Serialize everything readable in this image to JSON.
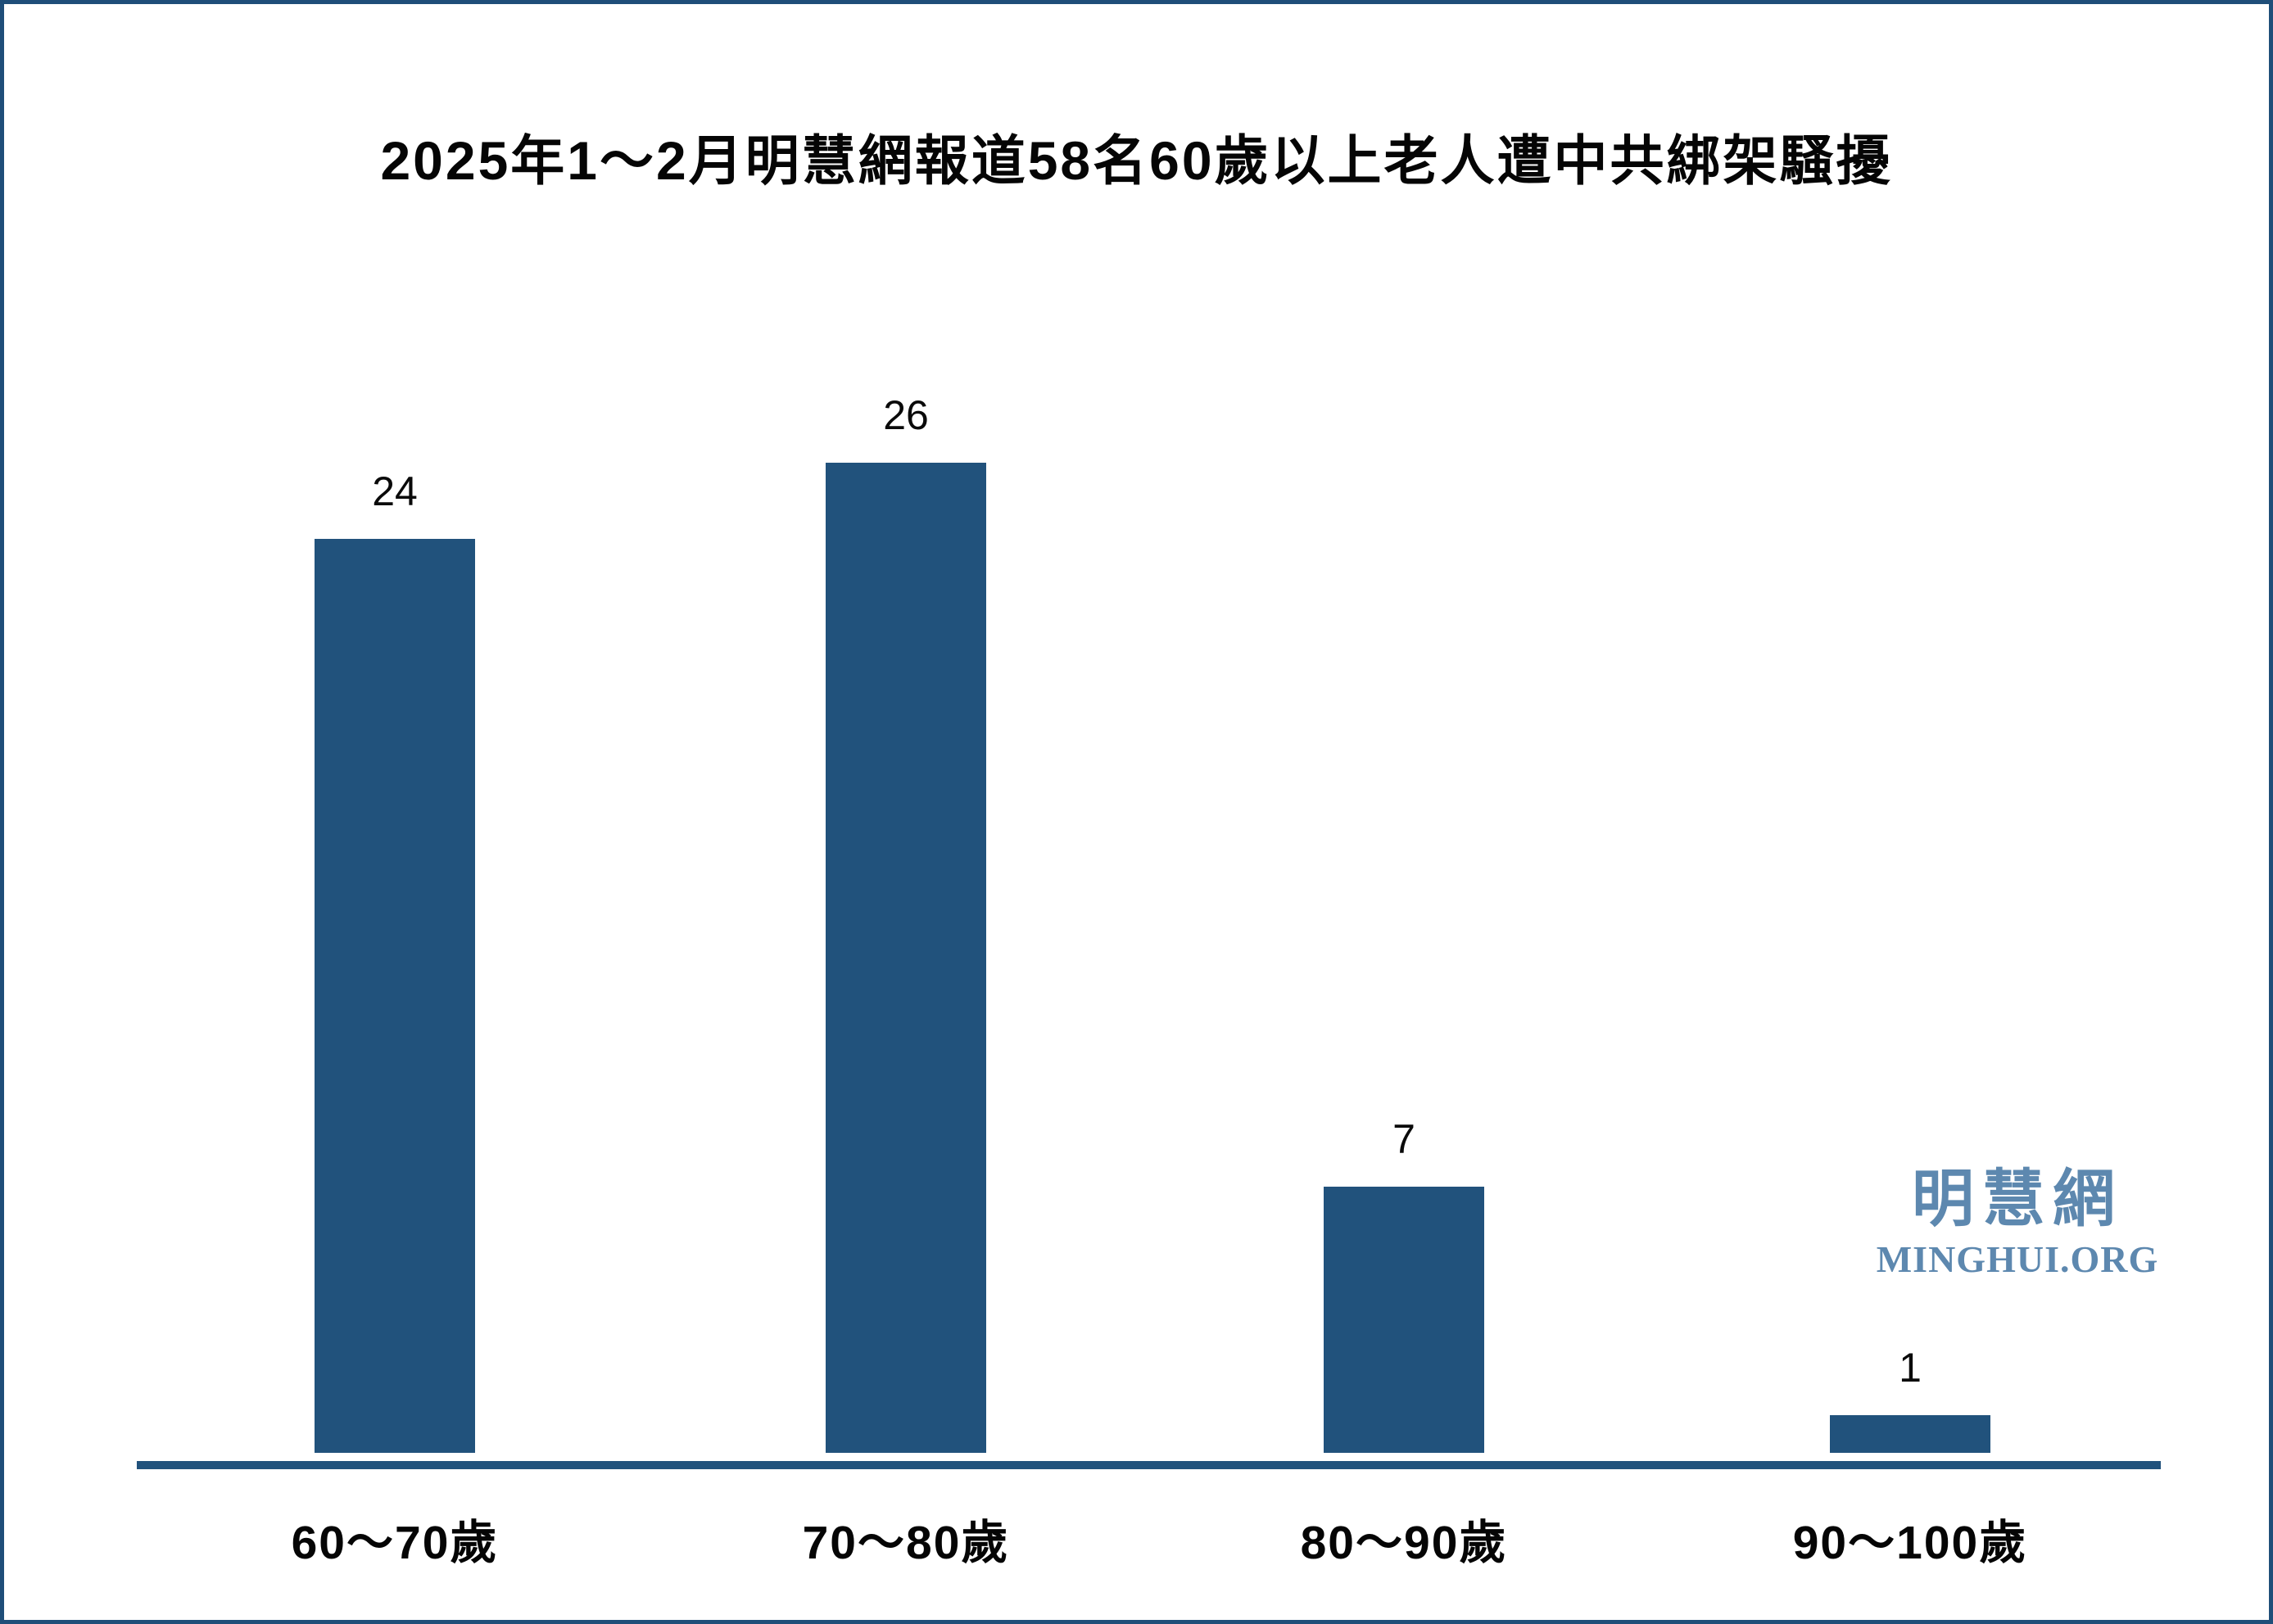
{
  "page": {
    "background": "#ffffff",
    "border_color": "#1f4e79"
  },
  "chart_data": {
    "type": "bar",
    "title": "2025年1～2月明慧網報道58名60歲以上老人遭中共綁架騷擾",
    "categories": [
      "60～70歲",
      "70～80歲",
      "80～90歲",
      "90～100歲"
    ],
    "values": [
      24,
      26,
      7,
      1
    ],
    "value_labels": [
      "24",
      "26",
      "7",
      "1"
    ],
    "total_mentioned_in_title": 58,
    "bar_color": "#21527c",
    "axis_color": "#21527c",
    "text_color": "#050505",
    "xlabel": "",
    "ylabel": "",
    "ylim": [
      0,
      26
    ],
    "grid": false,
    "legend": false,
    "y_axis_shown": false,
    "value_labels_position": "above-bars"
  },
  "watermark": {
    "cjk": "明慧網",
    "latin": "MINGHUI.ORG",
    "color": "#5d88af"
  }
}
